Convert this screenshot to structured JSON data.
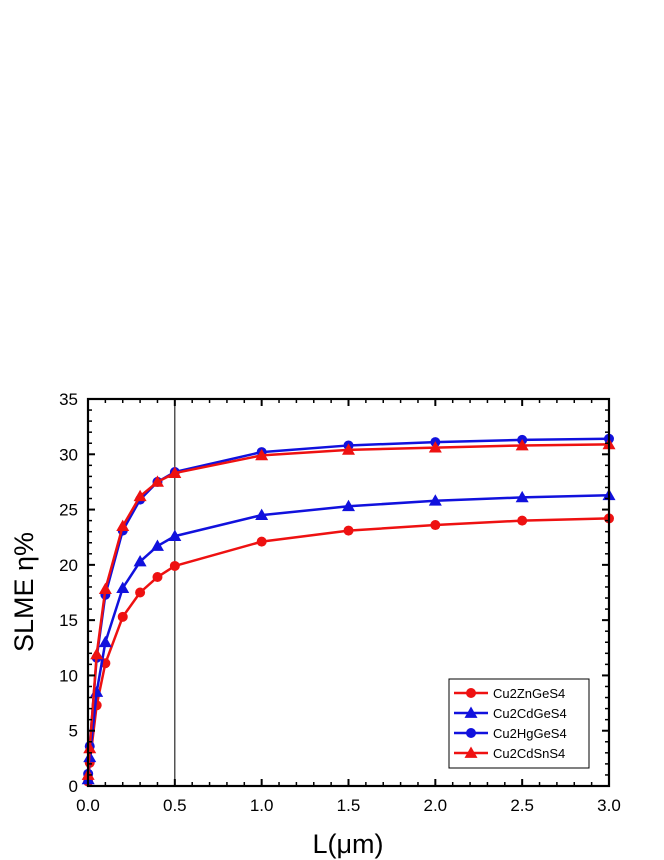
{
  "chart_data": {
    "type": "line",
    "title": "",
    "xlabel": "L(μm)",
    "ylabel": "SLME η%",
    "xlim": [
      0,
      3.0
    ],
    "ylim": [
      0,
      35
    ],
    "x_ticks": [
      "0.0",
      "0.5",
      "1.0",
      "1.5",
      "2.0",
      "2.5",
      "3.0"
    ],
    "y_ticks": [
      "0",
      "5",
      "10",
      "15",
      "20",
      "25",
      "30",
      "35"
    ],
    "grid": false,
    "legend_position": "bottom-right",
    "reference_line_x": 0.5,
    "series": [
      {
        "name": "Cu2ZnGeS4",
        "color": "#ee1111",
        "marker": "circle",
        "x": [
          0.001,
          0.01,
          0.05,
          0.1,
          0.2,
          0.3,
          0.4,
          0.5,
          1.0,
          1.5,
          2.0,
          2.5,
          3.0
        ],
        "y": [
          0.4,
          2.1,
          7.3,
          11.1,
          15.3,
          17.5,
          18.9,
          19.9,
          22.1,
          23.1,
          23.6,
          24.0,
          24.2
        ]
      },
      {
        "name": "Cu2CdGeS4",
        "color": "#1111dd",
        "marker": "triangle",
        "x": [
          0.001,
          0.01,
          0.05,
          0.1,
          0.2,
          0.3,
          0.4,
          0.5,
          1.0,
          1.5,
          2.0,
          2.5,
          3.0
        ],
        "y": [
          0.6,
          2.6,
          8.5,
          13.0,
          17.9,
          20.3,
          21.7,
          22.6,
          24.5,
          25.3,
          25.8,
          26.1,
          26.3
        ]
      },
      {
        "name": "Cu2HgGeS4",
        "color": "#1111dd",
        "marker": "circle",
        "x": [
          0.001,
          0.01,
          0.05,
          0.1,
          0.2,
          0.3,
          0.4,
          0.5,
          1.0,
          1.5,
          2.0,
          2.5,
          3.0
        ],
        "y": [
          1.1,
          3.6,
          11.6,
          17.3,
          23.1,
          25.9,
          27.5,
          28.4,
          30.2,
          30.8,
          31.1,
          31.3,
          31.4
        ]
      },
      {
        "name": "Cu2CdSnS4",
        "color": "#ee1111",
        "marker": "triangle",
        "x": [
          0.001,
          0.01,
          0.05,
          0.1,
          0.2,
          0.3,
          0.4,
          0.5,
          1.0,
          1.5,
          2.0,
          2.5,
          3.0
        ],
        "y": [
          1.0,
          3.4,
          11.9,
          17.8,
          23.5,
          26.2,
          27.5,
          28.3,
          29.9,
          30.4,
          30.6,
          30.8,
          30.9
        ]
      }
    ]
  }
}
